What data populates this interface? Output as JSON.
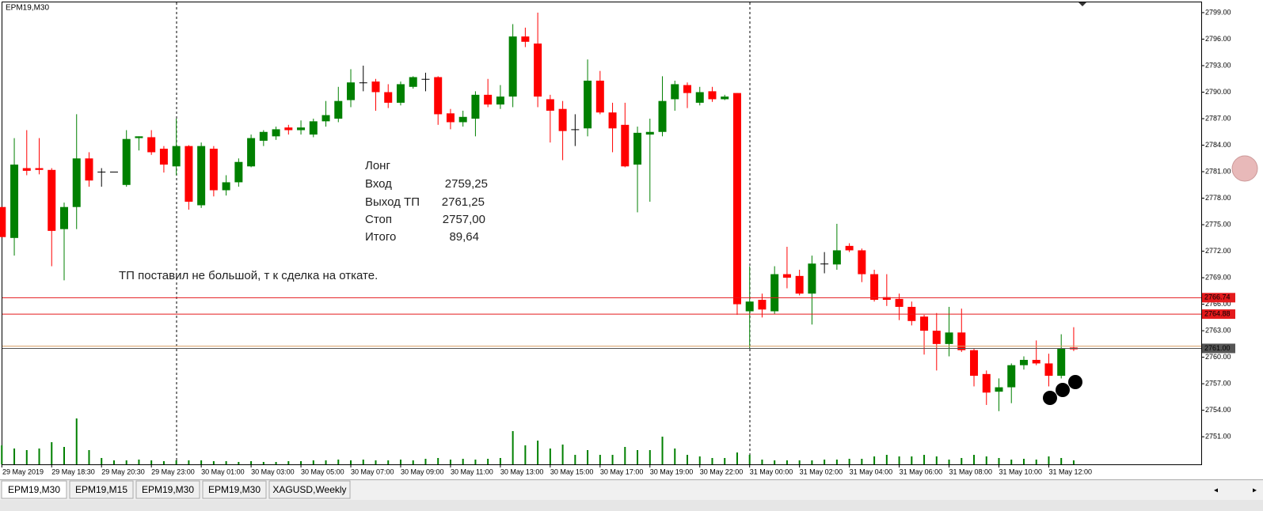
{
  "chart_data": {
    "type": "candlestick",
    "title": "EPM19,M30",
    "up_color": "#008000",
    "down_color": "#ff0000",
    "doji_color": "#000000",
    "volume_color": "#008000",
    "categories": [
      "29 May 2019",
      null,
      null,
      null,
      "29 May 18:30",
      null,
      null,
      null,
      "29 May 20:30",
      null,
      null,
      null,
      "29 May 23:00",
      null,
      null,
      null,
      "30 May 01:00",
      null,
      null,
      null,
      "30 May 03:00",
      null,
      null,
      null,
      "30 May 05:00",
      null,
      null,
      null,
      "30 May 07:00",
      null,
      null,
      null,
      "30 May 09:00",
      null,
      null,
      null,
      "30 May 11:00",
      null,
      null,
      null,
      "30 May 13:00",
      null,
      null,
      null,
      "30 May 15:00",
      null,
      null,
      null,
      "30 May 17:00",
      null,
      null,
      null,
      "30 May 19:00",
      null,
      null,
      null,
      "30 May 22:00",
      null,
      null,
      null,
      "31 May 00:00",
      null,
      null,
      null,
      "31 May 02:00",
      null,
      null,
      null,
      "31 May 04:00",
      null,
      null,
      null,
      "31 May 06:00",
      null,
      null,
      null,
      "31 May 08:00",
      null,
      null,
      null,
      "31 May 10:00",
      null,
      null,
      null,
      "31 May 12:00",
      null,
      null
    ],
    "open": [
      2777.0,
      2773.5,
      2781.4,
      2781.4,
      2781.2,
      2774.5,
      2777.0,
      2782.5,
      2781.0,
      2781.0,
      2779.5,
      2784.8,
      2784.9,
      2783.6,
      2781.6,
      2783.9,
      2777.2,
      2783.6,
      2778.9,
      2779.8,
      2781.6,
      2784.5,
      2785.0,
      2786.0,
      2785.7,
      2785.2,
      2786.7,
      2787.0,
      2789.1,
      2791.1,
      2791.2,
      2790.0,
      2788.8,
      2790.6,
      2791.5,
      2791.7,
      2787.6,
      2786.6,
      2787.0,
      2789.7,
      2788.6,
      2789.5,
      2796.3,
      2795.5,
      2789.2,
      2788.1,
      2785.8,
      2785.9,
      2791.3,
      2787.7,
      2786.3,
      2781.8,
      2785.2,
      2785.5,
      2789.2,
      2790.8,
      2788.8,
      2790.1,
      2789.2,
      2789.9,
      2765.2,
      2766.5,
      2765.2,
      2769.4,
      2769.2,
      2767.2,
      2770.6,
      2770.5,
      2772.6,
      2772.1,
      2769.4,
      2766.8,
      2766.6,
      2765.7,
      2764.6,
      2763.0,
      2761.5,
      2762.8,
      2760.8,
      2758.1,
      2756.1,
      2756.6,
      2759.1,
      2759.7,
      2759.3,
      2757.9,
      2761.1
    ],
    "high": [
      2777.0,
      2784.8,
      2785.7,
      2784.8,
      2781.4,
      2777.5,
      2787.5,
      2783.2,
      2781.4,
      2781.0,
      2785.7,
      2785.0,
      2785.7,
      2783.9,
      2787.0,
      2784.0,
      2784.3,
      2783.9,
      2780.6,
      2782.5,
      2785.2,
      2785.7,
      2786.1,
      2786.3,
      2786.8,
      2787.0,
      2789.0,
      2790.6,
      2792.6,
      2793.0,
      2791.5,
      2790.9,
      2791.2,
      2791.8,
      2792.2,
      2791.8,
      2788.1,
      2787.9,
      2790.1,
      2791.5,
      2790.8,
      2797.7,
      2797.3,
      2799.0,
      2789.7,
      2789.0,
      2787.5,
      2793.7,
      2792.4,
      2788.8,
      2788.8,
      2786.1,
      2787.0,
      2791.8,
      2791.3,
      2791.1,
      2790.6,
      2790.6,
      2789.7,
      2789.9,
      2770.3,
      2767.2,
      2770.3,
      2772.5,
      2769.9,
      2771.5,
      2771.9,
      2775.1,
      2772.9,
      2772.3,
      2769.9,
      2769.4,
      2767.2,
      2766.3,
      2764.8,
      2765.0,
      2765.7,
      2765.5,
      2761.0,
      2758.5,
      2757.6,
      2759.3,
      2760.1,
      2761.9,
      2760.4,
      2762.6,
      2763.4
    ],
    "low": [
      2773.6,
      2771.5,
      2780.6,
      2780.7,
      2770.3,
      2768.7,
      2774.5,
      2779.3,
      2779.3,
      2781.0,
      2779.3,
      2783.4,
      2782.9,
      2780.9,
      2780.6,
      2776.7,
      2776.9,
      2778.2,
      2778.3,
      2779.3,
      2781.5,
      2783.9,
      2784.6,
      2785.2,
      2785.2,
      2784.9,
      2786.1,
      2786.6,
      2788.3,
      2790.1,
      2787.9,
      2788.2,
      2788.5,
      2790.4,
      2790.1,
      2786.3,
      2785.8,
      2786.1,
      2785.0,
      2788.3,
      2788.1,
      2788.3,
      2795.1,
      2788.3,
      2784.3,
      2782.3,
      2783.9,
      2785.0,
      2787.5,
      2783.2,
      2781.5,
      2776.4,
      2777.6,
      2785.0,
      2787.9,
      2788.2,
      2788.5,
      2788.9,
      2789.1,
      2764.8,
      2761.0,
      2764.5,
      2764.9,
      2767.8,
      2767.0,
      2763.7,
      2769.5,
      2769.9,
      2771.9,
      2768.5,
      2766.3,
      2765.8,
      2764.2,
      2763.6,
      2760.3,
      2758.5,
      2760.1,
      2760.6,
      2756.7,
      2754.6,
      2753.9,
      2754.8,
      2758.6,
      2759.1,
      2756.7,
      2757.6,
      2760.7
    ],
    "close": [
      2773.6,
      2781.8,
      2781.1,
      2781.2,
      2774.3,
      2777.0,
      2782.5,
      2780.0,
      2781.0,
      2781.0,
      2784.7,
      2785.0,
      2783.2,
      2781.8,
      2783.9,
      2777.6,
      2783.9,
      2778.9,
      2779.8,
      2782.1,
      2784.8,
      2785.5,
      2785.8,
      2785.7,
      2786.0,
      2786.7,
      2787.4,
      2789.0,
      2791.1,
      2791.1,
      2790.0,
      2788.8,
      2790.9,
      2791.7,
      2791.5,
      2787.5,
      2786.6,
      2787.2,
      2789.7,
      2788.6,
      2789.5,
      2796.3,
      2795.7,
      2789.5,
      2787.9,
      2785.6,
      2785.8,
      2791.3,
      2787.7,
      2785.9,
      2781.6,
      2785.4,
      2785.5,
      2789.0,
      2790.9,
      2789.9,
      2790.0,
      2789.2,
      2789.5,
      2766.0,
      2766.3,
      2765.4,
      2769.4,
      2769.0,
      2767.2,
      2770.6,
      2770.6,
      2772.1,
      2772.1,
      2769.4,
      2766.5,
      2766.5,
      2765.7,
      2764.1,
      2763.0,
      2761.5,
      2762.8,
      2760.8,
      2757.9,
      2756.0,
      2756.6,
      2759.1,
      2759.7,
      2759.3,
      2757.9,
      2761.0,
      2760.9
    ],
    "volume": [
      24,
      20,
      18,
      20,
      28,
      22,
      58,
      18,
      8,
      5,
      5,
      6,
      5,
      4,
      5,
      5,
      5,
      4,
      4,
      3,
      4,
      3,
      3,
      4,
      4,
      5,
      5,
      6,
      5,
      6,
      5,
      5,
      6,
      5,
      7,
      8,
      6,
      7,
      6,
      7,
      8,
      42,
      24,
      30,
      20,
      25,
      12,
      18,
      12,
      12,
      22,
      18,
      18,
      35,
      20,
      12,
      10,
      8,
      8,
      15,
      12,
      6,
      5,
      5,
      5,
      5,
      6,
      6,
      7,
      7,
      10,
      12,
      10,
      10,
      12,
      10,
      6,
      8,
      12,
      10,
      8,
      6,
      7,
      6,
      10,
      8,
      5
    ],
    "ylim": [
      2747.88,
      2800.16
    ],
    "yticks": [
      {
        "value": 2751,
        "label": "2751.00"
      },
      {
        "value": 2754,
        "label": "2754.00"
      },
      {
        "value": 2757,
        "label": "2757.00"
      },
      {
        "value": 2760,
        "label": "2760.00"
      },
      {
        "value": 2763,
        "label": "2763.00"
      },
      {
        "value": 2766,
        "label": "2766.00"
      },
      {
        "value": 2769,
        "label": "2769.00"
      },
      {
        "value": 2772,
        "label": "2772.00"
      },
      {
        "value": 2775,
        "label": "2775.00"
      },
      {
        "value": 2778,
        "label": "2778.00"
      },
      {
        "value": 2781,
        "label": "2781.00"
      },
      {
        "value": 2784,
        "label": "2784.00"
      },
      {
        "value": 2787,
        "label": "2787.00"
      },
      {
        "value": 2790,
        "label": "2790.00"
      },
      {
        "value": 2793,
        "label": "2793.00"
      },
      {
        "value": 2796,
        "label": "2796.00"
      },
      {
        "value": 2799,
        "label": "2799.00"
      }
    ],
    "levels": [
      {
        "value": 2766.74,
        "label": "2766.74",
        "color": "#e41a1c"
      },
      {
        "value": 2764.88,
        "label": "2764.88",
        "color": "#e41a1c"
      },
      {
        "value": 2761.25,
        "color": "#d9a066"
      },
      {
        "value": 2761.0,
        "label": "2761.00",
        "color": "#555555"
      }
    ],
    "markers": [
      "1",
      "2",
      "3"
    ]
  },
  "annotations": {
    "rows": [
      [
        "Лонг"
      ],
      [
        "Вход",
        "2759,25"
      ],
      [
        "Выход ТП",
        "2761,25"
      ],
      [
        "Стоп",
        "2757,00"
      ],
      [
        "Итого",
        "89,64"
      ]
    ],
    "comment": "ТП поставил не большой, т к сделка на откате."
  },
  "tabs": [
    "EPM19,M30",
    "EPM19,M15",
    "EPM19,M30",
    "EPM19,M30",
    "XAGUSD,Weekly"
  ]
}
